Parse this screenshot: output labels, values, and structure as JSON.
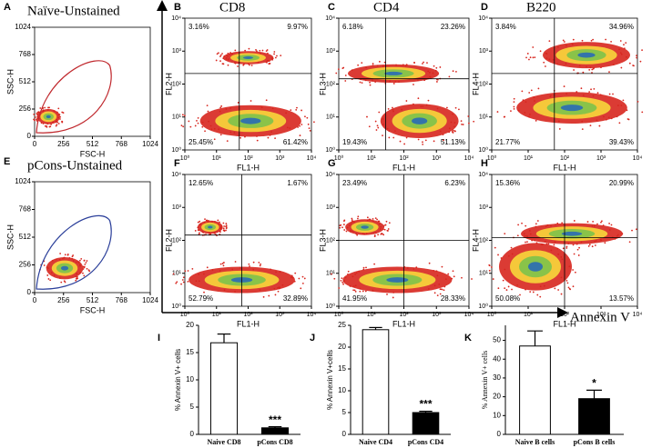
{
  "axis_annotation": "Annexin V",
  "chart_data": [
    {
      "type": "scatter_density",
      "panel": "A",
      "title": "Naïve-Unstained",
      "xlabel": "FSC-H",
      "ylabel": "SSC-H",
      "xlim": [
        0,
        1024
      ],
      "ylim": [
        0,
        1024
      ],
      "xticks": [
        0,
        256,
        512,
        768,
        1024
      ],
      "yticks": [
        0,
        256,
        512,
        768,
        1024
      ],
      "gate_color": "#c0282d"
    },
    {
      "type": "flow",
      "panel": "B",
      "title": "CD8",
      "xlabel": "FL1-H",
      "ylabel": "FL2-H",
      "xlim": [
        1,
        10000
      ],
      "ylim": [
        1,
        10000
      ],
      "log_scale": true,
      "xticks": [
        {
          "value": 1,
          "label": "10⁰"
        },
        {
          "value": 10,
          "label": "10¹"
        },
        {
          "value": 100,
          "label": "10²"
        },
        {
          "value": 1000,
          "label": "10³"
        },
        {
          "value": 10000,
          "label": "10⁴"
        }
      ],
      "yticks": [
        {
          "value": 1,
          "label": "10⁰"
        },
        {
          "value": 10,
          "label": "10¹"
        },
        {
          "value": 100,
          "label": "10²"
        },
        {
          "value": 1000,
          "label": "10³"
        },
        {
          "value": 10000,
          "label": "10⁴"
        }
      ],
      "quadrant_labels": [
        "3.16%",
        "9.97%",
        "25.45%",
        "61.42%"
      ]
    },
    {
      "type": "flow",
      "panel": "C",
      "title": "CD4",
      "xlabel": "FL1-H",
      "ylabel": "FL3-H",
      "xlim": [
        1,
        10000
      ],
      "ylim": [
        1,
        10000
      ],
      "log_scale": true,
      "xticks": [
        {
          "value": 1,
          "label": "10⁰"
        },
        {
          "value": 10,
          "label": "10¹"
        },
        {
          "value": 100,
          "label": "10²"
        },
        {
          "value": 1000,
          "label": "10³"
        },
        {
          "value": 10000,
          "label": "10⁴"
        }
      ],
      "yticks": [
        {
          "value": 1,
          "label": "10⁰"
        },
        {
          "value": 10,
          "label": "10¹"
        },
        {
          "value": 100,
          "label": "10²"
        },
        {
          "value": 1000,
          "label": "10³"
        },
        {
          "value": 10000,
          "label": "10⁴"
        }
      ],
      "quadrant_labels": [
        "6.18%",
        "23.26%",
        "19.43%",
        "51.13%"
      ]
    },
    {
      "type": "flow",
      "panel": "D",
      "title": "B220",
      "xlabel": "FL1-H",
      "ylabel": "FL4-H",
      "xlim": [
        1,
        10000
      ],
      "ylim": [
        1,
        10000
      ],
      "log_scale": true,
      "xticks": [
        {
          "value": 1,
          "label": "10⁰"
        },
        {
          "value": 10,
          "label": "10¹"
        },
        {
          "value": 100,
          "label": "10²"
        },
        {
          "value": 1000,
          "label": "10³"
        },
        {
          "value": 10000,
          "label": "10⁴"
        }
      ],
      "yticks": [
        {
          "value": 1,
          "label": "10⁰"
        },
        {
          "value": 10,
          "label": "10¹"
        },
        {
          "value": 100,
          "label": "10²"
        },
        {
          "value": 1000,
          "label": "10³"
        },
        {
          "value": 10000,
          "label": "10⁴"
        }
      ],
      "quadrant_labels": [
        "3.84%",
        "34.96%",
        "21.77%",
        "39.43%"
      ]
    },
    {
      "type": "scatter_density",
      "panel": "E",
      "title": "pCons-Unstained",
      "xlabel": "FSC-H",
      "ylabel": "SSC-H",
      "xlim": [
        0,
        1024
      ],
      "ylim": [
        0,
        1024
      ],
      "xticks": [
        0,
        256,
        512,
        768,
        1024
      ],
      "yticks": [
        0,
        256,
        512,
        768,
        1024
      ],
      "gate_color": "#2b3f9a"
    },
    {
      "type": "flow",
      "panel": "F",
      "xlabel": "FL1-H",
      "ylabel": "FL2-H",
      "xlim": [
        1,
        10000
      ],
      "ylim": [
        1,
        10000
      ],
      "log_scale": true,
      "xticks": [
        {
          "value": 1,
          "label": "10⁰"
        },
        {
          "value": 10,
          "label": "10¹"
        },
        {
          "value": 100,
          "label": "10²"
        },
        {
          "value": 1000,
          "label": "10³"
        },
        {
          "value": 10000,
          "label": "10⁴"
        }
      ],
      "yticks": [
        {
          "value": 1,
          "label": "10⁰"
        },
        {
          "value": 10,
          "label": "10¹"
        },
        {
          "value": 100,
          "label": "10²"
        },
        {
          "value": 1000,
          "label": "10³"
        },
        {
          "value": 10000,
          "label": "10⁴"
        }
      ],
      "quadrant_labels": [
        "12.65%",
        "1.67%",
        "52.79%",
        "32.89%"
      ]
    },
    {
      "type": "flow",
      "panel": "G",
      "xlabel": "FL1-H",
      "ylabel": "FL3-H",
      "xlim": [
        1,
        10000
      ],
      "ylim": [
        1,
        10000
      ],
      "log_scale": true,
      "xticks": [
        {
          "value": 1,
          "label": "10⁰"
        },
        {
          "value": 10,
          "label": "10¹"
        },
        {
          "value": 100,
          "label": "10²"
        },
        {
          "value": 1000,
          "label": "10³"
        },
        {
          "value": 10000,
          "label": "10⁴"
        }
      ],
      "yticks": [
        {
          "value": 1,
          "label": "10⁰"
        },
        {
          "value": 10,
          "label": "10¹"
        },
        {
          "value": 100,
          "label": "10²"
        },
        {
          "value": 1000,
          "label": "10³"
        },
        {
          "value": 10000,
          "label": "10⁴"
        }
      ],
      "quadrant_labels": [
        "23.49%",
        "6.23%",
        "41.95%",
        "28.33%"
      ]
    },
    {
      "type": "flow",
      "panel": "H",
      "xlabel": "FL1-H",
      "ylabel": "FL4-H",
      "xlim": [
        1,
        10000
      ],
      "ylim": [
        1,
        10000
      ],
      "log_scale": true,
      "xticks": [
        {
          "value": 1,
          "label": "10⁰"
        },
        {
          "value": 10,
          "label": "10¹"
        },
        {
          "value": 100,
          "label": "10²"
        },
        {
          "value": 1000,
          "label": "10³"
        },
        {
          "value": 10000,
          "label": "10⁴"
        }
      ],
      "yticks": [
        {
          "value": 1,
          "label": "10⁰"
        },
        {
          "value": 10,
          "label": "10¹"
        },
        {
          "value": 100,
          "label": "10²"
        },
        {
          "value": 1000,
          "label": "10³"
        },
        {
          "value": 10000,
          "label": "10⁴"
        }
      ],
      "quadrant_labels": [
        "15.36%",
        "20.99%",
        "50.08%",
        "13.57%"
      ]
    },
    {
      "type": "bar",
      "panel": "I",
      "ylabel": "% Annexin V+ cells",
      "categories": [
        "Naive CD8",
        "pCons CD8"
      ],
      "values": [
        16.8,
        1.2
      ],
      "errors": [
        1.6,
        0.2
      ],
      "colors": [
        "#ffffff",
        "#000000"
      ],
      "ylim": [
        0,
        20
      ],
      "yticks": [
        0,
        5,
        10,
        15,
        20
      ],
      "significance": "***"
    },
    {
      "type": "bar",
      "panel": "J",
      "ylabel": "% Annexin V+cells",
      "categories": [
        "Naive CD4",
        "pCons CD4"
      ],
      "values": [
        24,
        5
      ],
      "errors": [
        0.5,
        0.3
      ],
      "colors": [
        "#ffffff",
        "#000000"
      ],
      "ylim": [
        0,
        25
      ],
      "yticks": [
        0,
        5,
        10,
        15,
        20,
        25
      ],
      "significance": "***"
    },
    {
      "type": "bar",
      "panel": "K",
      "ylabel": "% Annexin V+ cells",
      "categories": [
        "Naive B cells",
        "pCons B cells"
      ],
      "values": [
        47,
        19
      ],
      "errors": [
        8,
        4.5
      ],
      "colors": [
        "#ffffff",
        "#000000"
      ],
      "ylim": [
        0,
        58
      ],
      "yticks": [
        0,
        10,
        20,
        30,
        40,
        50
      ],
      "significance": "*"
    }
  ]
}
